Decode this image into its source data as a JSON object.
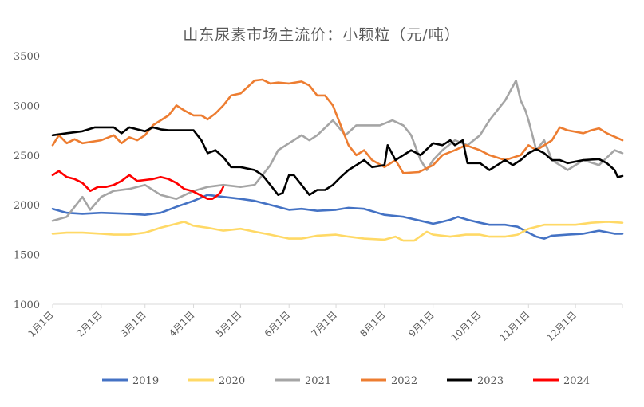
{
  "chart_data": {
    "type": "line",
    "title": "山东尿素市场主流价：小颗粒（元/吨）",
    "xlabel": "",
    "ylabel": "",
    "ylim": [
      1000,
      3500
    ],
    "yticks": [
      1000,
      1500,
      2000,
      2500,
      3000,
      3500
    ],
    "xticks": [
      "1月1日",
      "2月1日",
      "3月1日",
      "4月1日",
      "5月1日",
      "6月1日",
      "7月1日",
      "8月1日",
      "9月1日",
      "10月1日",
      "11月1日",
      "12月1日"
    ],
    "xlim": [
      1,
      365
    ],
    "grid": false,
    "legend_position": "bottom",
    "series": [
      {
        "name": "2019",
        "color": "#4472C4",
        "x": [
          1,
          10,
          20,
          32,
          50,
          60,
          70,
          80,
          91,
          100,
          110,
          121,
          130,
          140,
          152,
          160,
          170,
          182,
          190,
          200,
          213,
          225,
          236,
          244,
          250,
          255,
          260,
          266,
          274,
          280,
          290,
          298,
          305,
          310,
          315,
          320,
          330,
          340,
          350,
          360,
          365
        ],
        "y": [
          1960,
          1920,
          1910,
          1920,
          1910,
          1900,
          1920,
          1980,
          2040,
          2100,
          2080,
          2060,
          2040,
          2000,
          1950,
          1960,
          1940,
          1950,
          1970,
          1960,
          1900,
          1880,
          1840,
          1810,
          1830,
          1850,
          1880,
          1850,
          1820,
          1800,
          1800,
          1780,
          1720,
          1680,
          1660,
          1690,
          1700,
          1710,
          1740,
          1710,
          1710
        ]
      },
      {
        "name": "2020",
        "color": "#FFD966",
        "x": [
          1,
          10,
          20,
          32,
          40,
          50,
          60,
          70,
          75,
          85,
          91,
          100,
          110,
          121,
          130,
          140,
          152,
          160,
          170,
          182,
          190,
          200,
          213,
          220,
          225,
          232,
          240,
          244,
          255,
          265,
          274,
          280,
          290,
          298,
          305,
          315,
          325,
          335,
          345,
          355,
          365
        ],
        "y": [
          1710,
          1720,
          1720,
          1710,
          1700,
          1700,
          1720,
          1770,
          1790,
          1830,
          1790,
          1770,
          1740,
          1760,
          1730,
          1700,
          1660,
          1660,
          1690,
          1700,
          1680,
          1660,
          1650,
          1680,
          1640,
          1640,
          1730,
          1700,
          1680,
          1700,
          1700,
          1680,
          1680,
          1700,
          1760,
          1800,
          1800,
          1800,
          1820,
          1830,
          1820
        ]
      },
      {
        "name": "2021",
        "color": "#A5A5A5",
        "x": [
          1,
          10,
          15,
          20,
          25,
          32,
          40,
          50,
          60,
          70,
          80,
          91,
          100,
          110,
          121,
          130,
          135,
          140,
          145,
          150,
          155,
          160,
          165,
          170,
          180,
          188,
          195,
          200,
          210,
          218,
          225,
          230,
          236,
          240,
          244,
          250,
          258,
          266,
          274,
          280,
          290,
          297,
          300,
          303,
          305,
          310,
          315,
          320,
          330,
          340,
          350,
          360,
          365
        ],
        "y": [
          1840,
          1880,
          1980,
          2080,
          1950,
          2080,
          2140,
          2160,
          2200,
          2100,
          2060,
          2140,
          2180,
          2200,
          2180,
          2200,
          2300,
          2400,
          2550,
          2600,
          2650,
          2700,
          2650,
          2700,
          2850,
          2700,
          2800,
          2800,
          2800,
          2850,
          2800,
          2700,
          2450,
          2350,
          2450,
          2550,
          2650,
          2600,
          2700,
          2850,
          3050,
          3250,
          3050,
          2950,
          2850,
          2550,
          2650,
          2450,
          2350,
          2450,
          2400,
          2550,
          2520
        ]
      },
      {
        "name": "2022",
        "color": "#ED7D31",
        "x": [
          1,
          5,
          10,
          15,
          20,
          32,
          40,
          45,
          50,
          55,
          60,
          65,
          70,
          75,
          80,
          85,
          91,
          96,
          100,
          105,
          110,
          115,
          121,
          130,
          135,
          140,
          145,
          152,
          160,
          165,
          170,
          175,
          180,
          185,
          190,
          195,
          200,
          205,
          213,
          220,
          225,
          235,
          244,
          250,
          258,
          265,
          274,
          280,
          290,
          300,
          305,
          310,
          320,
          325,
          330,
          340,
          345,
          350,
          355,
          365
        ],
        "y": [
          2600,
          2700,
          2620,
          2660,
          2620,
          2650,
          2700,
          2620,
          2680,
          2650,
          2700,
          2800,
          2850,
          2900,
          3000,
          2950,
          2900,
          2900,
          2860,
          2920,
          3000,
          3100,
          3120,
          3250,
          3260,
          3220,
          3230,
          3220,
          3240,
          3200,
          3100,
          3100,
          3000,
          2800,
          2600,
          2500,
          2550,
          2450,
          2380,
          2450,
          2320,
          2330,
          2400,
          2500,
          2550,
          2600,
          2550,
          2500,
          2450,
          2500,
          2600,
          2550,
          2650,
          2780,
          2750,
          2720,
          2750,
          2770,
          2720,
          2650
        ]
      },
      {
        "name": "2023",
        "color": "#000000",
        "x": [
          1,
          10,
          20,
          28,
          32,
          40,
          45,
          50,
          55,
          60,
          65,
          70,
          75,
          80,
          91,
          96,
          100,
          105,
          110,
          115,
          121,
          130,
          135,
          140,
          145,
          148,
          152,
          155,
          160,
          165,
          170,
          175,
          180,
          185,
          190,
          195,
          200,
          205,
          213,
          215,
          220,
          225,
          230,
          236,
          244,
          250,
          255,
          258,
          263,
          266,
          274,
          280,
          285,
          290,
          295,
          300,
          305,
          310,
          315,
          320,
          325,
          330,
          340,
          350,
          355,
          360,
          362,
          365
        ],
        "y": [
          2700,
          2720,
          2740,
          2780,
          2780,
          2780,
          2720,
          2780,
          2760,
          2740,
          2780,
          2760,
          2750,
          2750,
          2750,
          2650,
          2520,
          2550,
          2480,
          2380,
          2380,
          2350,
          2300,
          2200,
          2100,
          2120,
          2300,
          2300,
          2200,
          2100,
          2150,
          2150,
          2200,
          2280,
          2350,
          2400,
          2450,
          2380,
          2400,
          2600,
          2450,
          2500,
          2550,
          2500,
          2620,
          2600,
          2650,
          2600,
          2650,
          2420,
          2420,
          2350,
          2400,
          2450,
          2400,
          2450,
          2520,
          2560,
          2520,
          2450,
          2450,
          2420,
          2450,
          2460,
          2420,
          2350,
          2280,
          2290
        ]
      },
      {
        "name": "2024",
        "color": "#FF0000",
        "x": [
          1,
          5,
          10,
          15,
          20,
          25,
          30,
          35,
          40,
          45,
          50,
          55,
          60,
          65,
          70,
          75,
          80,
          85,
          90,
          95,
          100,
          103,
          105,
          108,
          110
        ],
        "y": [
          2300,
          2340,
          2280,
          2260,
          2220,
          2140,
          2180,
          2180,
          2200,
          2240,
          2300,
          2240,
          2250,
          2260,
          2280,
          2260,
          2220,
          2160,
          2140,
          2100,
          2060,
          2060,
          2080,
          2120,
          2180
        ]
      }
    ]
  }
}
